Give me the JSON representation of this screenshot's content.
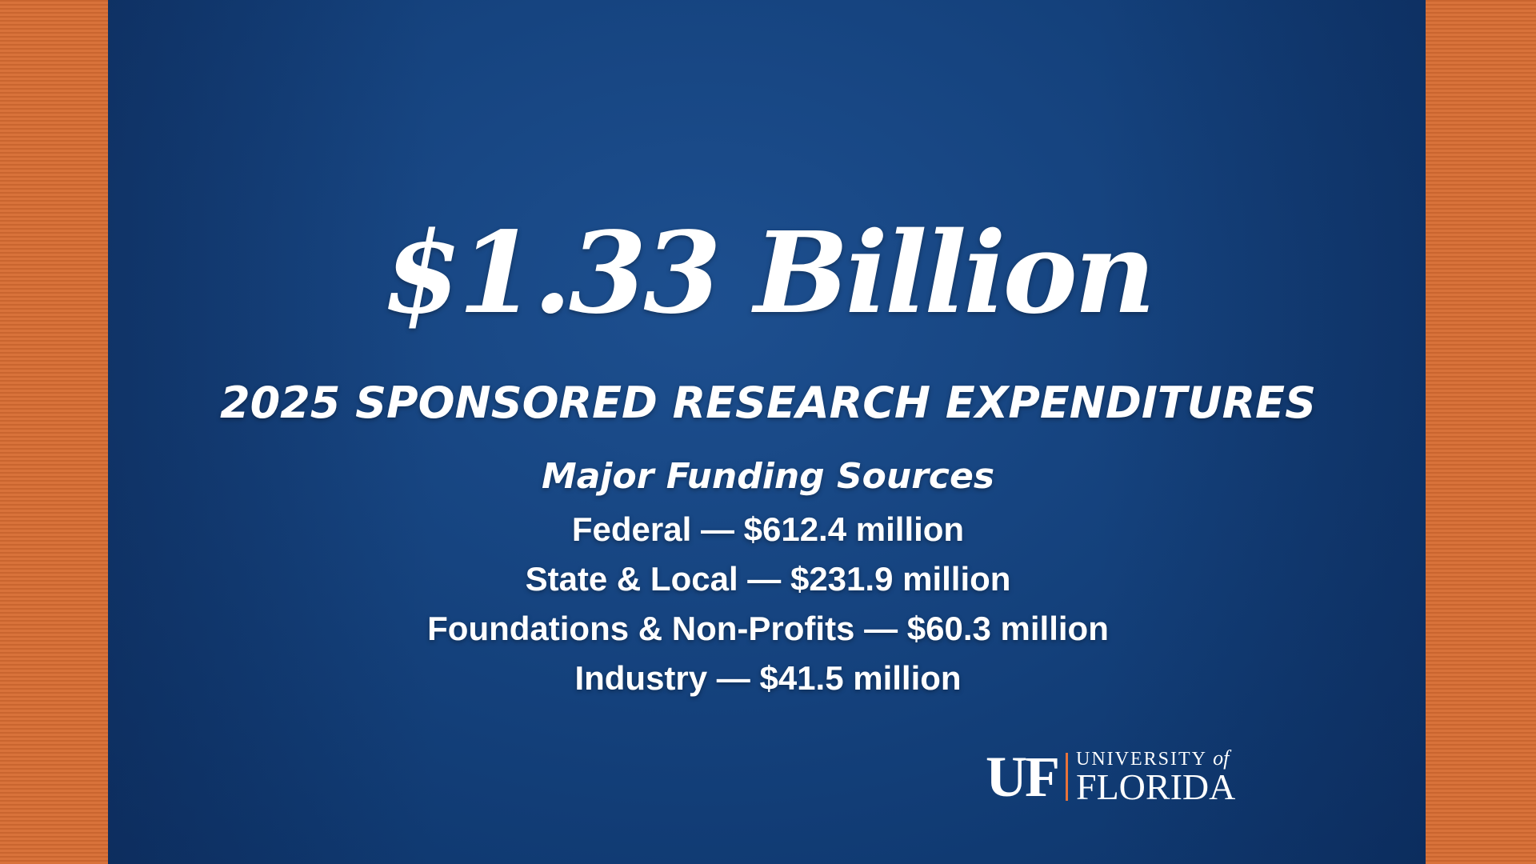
{
  "headline": "$1.33 Billion",
  "subtitle": "2025 SPONSORED RESEARCH EXPENDITURES",
  "sources": {
    "heading": "Major Funding Sources",
    "items": [
      "Federal — $612.4 million",
      "State & Local — $231.9 million",
      "Foundations & Non-Profits — $60.3 million",
      "Industry — $41.5 million"
    ]
  },
  "logo": {
    "mark": "UF",
    "university": "UNIVERSITY",
    "of": "of",
    "name": "FLORIDA"
  }
}
